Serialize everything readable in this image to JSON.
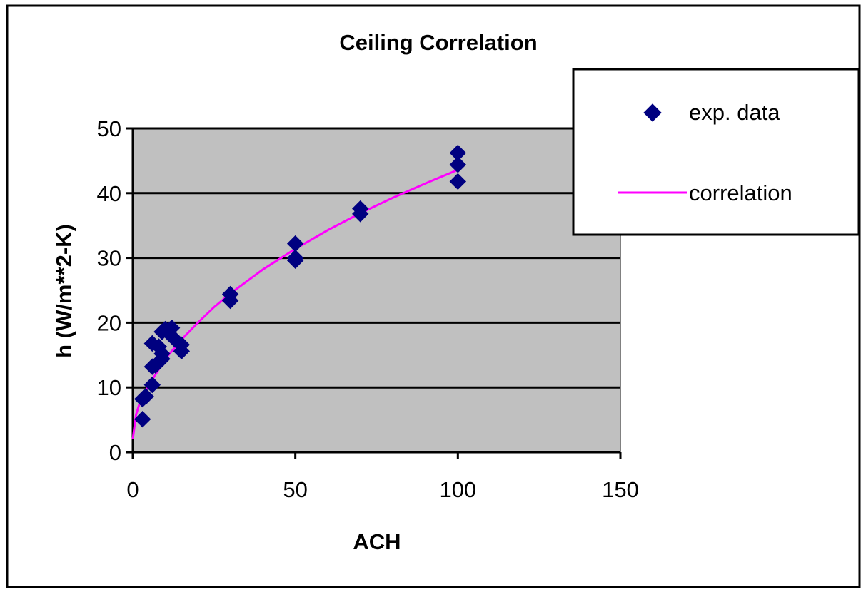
{
  "chart_data": {
    "type": "scatter",
    "title": "Ceiling Correlation",
    "xlabel": "ACH",
    "ylabel": "h (W/m**2-K)",
    "xlim": [
      0,
      150
    ],
    "ylim": [
      0,
      50
    ],
    "xticks": [
      0,
      50,
      100,
      150
    ],
    "yticks": [
      0,
      10,
      20,
      30,
      40,
      50
    ],
    "grid": "horizontal",
    "legend_position": "top-right",
    "plot_background": "#c0c0c0",
    "series": [
      {
        "name": "exp. data",
        "kind": "scatter",
        "marker": "diamond",
        "color": "#000080",
        "points": [
          [
            3,
            5.1
          ],
          [
            3,
            8.2
          ],
          [
            4,
            8.6
          ],
          [
            6,
            10.4
          ],
          [
            6,
            13.2
          ],
          [
            7,
            13.4
          ],
          [
            6,
            16.8
          ],
          [
            8,
            16.3
          ],
          [
            9,
            14.4
          ],
          [
            9,
            15.2
          ],
          [
            9,
            18.6
          ],
          [
            10,
            19.0
          ],
          [
            11,
            18.4
          ],
          [
            12,
            19.2
          ],
          [
            13,
            17.4
          ],
          [
            15,
            15.6
          ],
          [
            15,
            16.6
          ],
          [
            30,
            23.4
          ],
          [
            30,
            24.4
          ],
          [
            50,
            29.6
          ],
          [
            50,
            30.0
          ],
          [
            50,
            32.2
          ],
          [
            70,
            36.8
          ],
          [
            70,
            37.6
          ],
          [
            100,
            41.8
          ],
          [
            100,
            44.4
          ],
          [
            100,
            46.2
          ]
        ]
      },
      {
        "name": "correlation",
        "kind": "line",
        "color": "#ff00ff",
        "points": [
          [
            0,
            2.0
          ],
          [
            1,
            5.8
          ],
          [
            2,
            7.4
          ],
          [
            3,
            8.6
          ],
          [
            5,
            10.4
          ],
          [
            7,
            12.0
          ],
          [
            10,
            14.4
          ],
          [
            15,
            17.4
          ],
          [
            20,
            20.0
          ],
          [
            25,
            22.4
          ],
          [
            30,
            24.5
          ],
          [
            40,
            28.2
          ],
          [
            50,
            31.4
          ],
          [
            60,
            34.3
          ],
          [
            70,
            36.9
          ],
          [
            80,
            39.3
          ],
          [
            90,
            41.5
          ],
          [
            100,
            43.6
          ]
        ]
      }
    ]
  }
}
